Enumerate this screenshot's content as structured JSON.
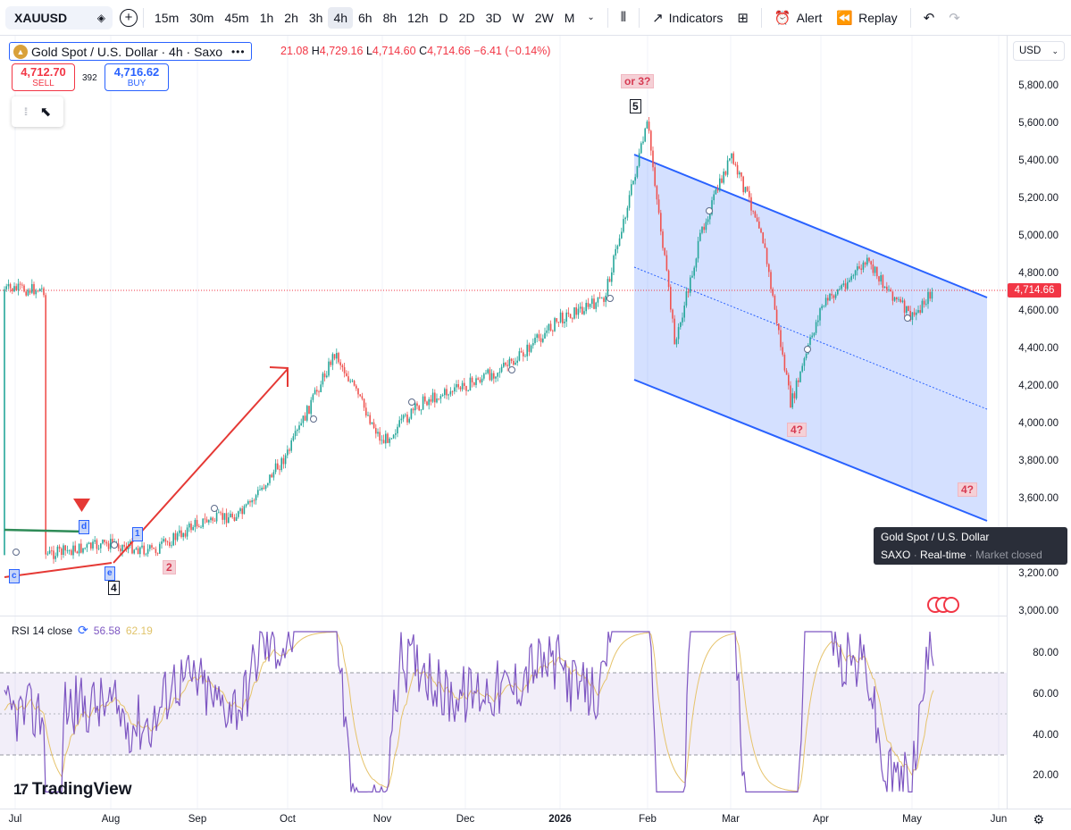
{
  "toolbar": {
    "symbol": "XAUUSD",
    "intervals": [
      "15m",
      "30m",
      "45m",
      "1h",
      "2h",
      "3h",
      "4h",
      "6h",
      "8h",
      "12h",
      "D",
      "2D",
      "3D",
      "W",
      "2W",
      "M"
    ],
    "active_interval": "4h",
    "indicators_label": "Indicators",
    "alert_label": "Alert",
    "replay_label": "Replay"
  },
  "legend": {
    "title": "Gold Spot / U.S. Dollar · 4h · Saxo",
    "ohlc_o_value": "21.08",
    "ohlc_h_key": "H",
    "ohlc_h_value": "4,729.16",
    "ohlc_l_key": "L",
    "ohlc_l_value": "4,714.60",
    "ohlc_c_key": "C",
    "ohlc_c_value": "4,714.66",
    "change": "−6.41 (−0.14%)",
    "sell_price": "4,712.70",
    "sell_label": "SELL",
    "spread": "392",
    "buy_price": "4,716.62",
    "buy_label": "BUY"
  },
  "price_axis": {
    "currency": "USD",
    "labels": [
      "5,800.00",
      "5,600.00",
      "5,400.00",
      "5,200.00",
      "5,000.00",
      "4,800.00",
      "4,600.00",
      "4,400.00",
      "4,200.00",
      "4,000.00",
      "3,800.00",
      "3,600.00",
      "3,200.00",
      "3,000.00"
    ],
    "current_price": "4,714.66"
  },
  "rsi": {
    "label": "RSI 14 close",
    "value": "56.58",
    "ma_value": "62.19",
    "axis_labels": [
      "80.00",
      "60.00",
      "40.00",
      "20.00"
    ]
  },
  "time_axis": {
    "labels": [
      "Jul",
      "Aug",
      "Sep",
      "Oct",
      "Nov",
      "Dec",
      "2026",
      "Feb",
      "Mar",
      "Apr",
      "May",
      "Jun"
    ]
  },
  "annotations": {
    "wave5": "5",
    "or3": "or 3?",
    "wave4a": "4?",
    "wave4b": "4?",
    "wave4": "4",
    "wave2": "2",
    "wave1": "1",
    "wave_c": "c",
    "wave_d": "d",
    "wave_e": "e"
  },
  "tooltip": {
    "line1": "Gold Spot / U.S. Dollar",
    "source": "SAXO",
    "status": "Real-time",
    "market": "Market closed"
  },
  "branding": "TradingView",
  "colors": {
    "up": "#26a69a",
    "down": "#ef5350",
    "channel": "#2962ff",
    "rsi": "#7e57c2",
    "rsi_ma": "#e6c36b",
    "arrow": "#e53935"
  },
  "chart_data": {
    "type": "candlestick",
    "symbol": "XAUUSD",
    "timeframe": "4h",
    "last_close": 4714.66,
    "ylim": [
      3000,
      5800
    ],
    "x": [
      "Jul",
      "Aug",
      "Sep",
      "Oct",
      "Nov",
      "Dec",
      "2026",
      "Feb",
      "Mar",
      "Apr",
      "May",
      "Jun"
    ],
    "path_points": [
      [
        "Jul",
        3300
      ],
      [
        "Aug",
        3360
      ],
      [
        "Aug",
        3320
      ],
      [
        "Sep",
        3470
      ],
      [
        "Sep",
        3520
      ],
      [
        "Oct",
        3840
      ],
      [
        "Oct",
        4380
      ],
      [
        "Nov",
        3900
      ],
      [
        "Nov",
        4120
      ],
      [
        "Dec",
        4200
      ],
      [
        "Dec",
        4320
      ],
      [
        "2026",
        4560
      ],
      [
        "2026",
        4660
      ],
      [
        "Feb",
        5600
      ],
      [
        "Feb",
        4420
      ],
      [
        "Feb",
        5050
      ],
      [
        "Mar",
        5420
      ],
      [
        "Mar",
        5050
      ],
      [
        "Mar",
        4100
      ],
      [
        "Apr",
        4620
      ],
      [
        "Apr",
        4860
      ],
      [
        "May",
        4560
      ],
      [
        "May",
        4714.66
      ]
    ],
    "rsi": {
      "period": 14,
      "last": 56.58,
      "ma_last": 62.19,
      "bands": [
        30,
        50,
        70
      ]
    }
  }
}
